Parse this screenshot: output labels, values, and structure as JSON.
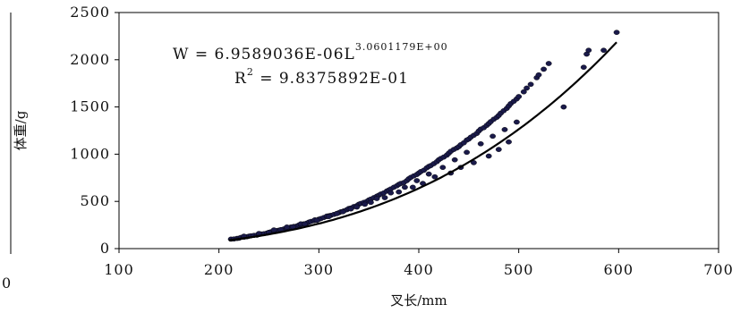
{
  "chart_data": {
    "type": "scatter",
    "xlabel": "叉长/mm",
    "ylabel": "体重/g",
    "xlim": [
      100,
      700
    ],
    "ylim": [
      0,
      2500
    ],
    "x_ticks": [
      "100",
      "200",
      "300",
      "400",
      "500",
      "600",
      "700"
    ],
    "y_ticks": [
      "0",
      "500",
      "1000",
      "1500",
      "2000",
      "2500"
    ],
    "grid": false,
    "legend": "none",
    "point_color": "#1a1a4a",
    "line_color": "#000000",
    "equation": {
      "w_prefix": "W = 6.9589036E-06L",
      "w_exponent": "3.0601179E+00",
      "r_prefix": "R",
      "r_sup": "2",
      "r_value": " = 9.8375892E-01"
    },
    "edge_label": "0",
    "fit": {
      "a": 6.9589036e-06,
      "b": 3.0601179,
      "x_from": 210,
      "x_to": 598
    },
    "series": [
      {
        "x": [
          212,
          215,
          218,
          220,
          222,
          225,
          228,
          230,
          232,
          235,
          238,
          240,
          242,
          245,
          248,
          250,
          252,
          255,
          258,
          260,
          262,
          265,
          268,
          270,
          272,
          275,
          278,
          280,
          282,
          285,
          288,
          290,
          292,
          295,
          298,
          300,
          302,
          305,
          308,
          310,
          312,
          315,
          318,
          320,
          322,
          325,
          328,
          330,
          332,
          335,
          338,
          340,
          342,
          345,
          348,
          350,
          352,
          355,
          358,
          360,
          362,
          365,
          368,
          370,
          372,
          375,
          378,
          380,
          382,
          385,
          388,
          390,
          392,
          395,
          398,
          400,
          402,
          405,
          408,
          410,
          412,
          415,
          418,
          420,
          422,
          425,
          428,
          430,
          432,
          435,
          438,
          440,
          442,
          445,
          448,
          450,
          452,
          455,
          458,
          460,
          462,
          465,
          468,
          470,
          472,
          475,
          478,
          480,
          482,
          485,
          488,
          490,
          492,
          495,
          498,
          500,
          505,
          508,
          512,
          518,
          520,
          525,
          530,
          545,
          565,
          568,
          570,
          585,
          598,
          225,
          240,
          255,
          268,
          282,
          296,
          308,
          318,
          332,
          346,
          358,
          372,
          386,
          398,
          410,
          424,
          436,
          448,
          462,
          474,
          486,
          498,
          490,
          480,
          470,
          455,
          442,
          432,
          416,
          404,
          394,
          380,
          366,
          352,
          338,
          324,
          310,
          298,
          286,
          274,
          262,
          250
        ],
        "y": [
          100,
          102,
          108,
          110,
          118,
          120,
          125,
          132,
          135,
          140,
          142,
          150,
          155,
          158,
          165,
          172,
          178,
          180,
          190,
          195,
          200,
          208,
          215,
          222,
          228,
          235,
          240,
          250,
          255,
          262,
          270,
          280,
          288,
          295,
          300,
          312,
          318,
          330,
          340,
          348,
          352,
          362,
          372,
          380,
          390,
          400,
          412,
          425,
          430,
          445,
          455,
          470,
          478,
          490,
          500,
          515,
          525,
          540,
          555,
          565,
          578,
          590,
          610,
          620,
          632,
          650,
          665,
          680,
          690,
          700,
          720,
          740,
          755,
          770,
          785,
          800,
          815,
          830,
          855,
          870,
          880,
          900,
          920,
          940,
          955,
          970,
          990,
          1010,
          1030,
          1050,
          1065,
          1080,
          1100,
          1120,
          1150,
          1160,
          1180,
          1200,
          1220,
          1245,
          1265,
          1280,
          1305,
          1325,
          1345,
          1370,
          1390,
          1410,
          1435,
          1460,
          1485,
          1510,
          1535,
          1560,
          1585,
          1610,
          1660,
          1700,
          1740,
          1810,
          1840,
          1900,
          1960,
          1500,
          1920,
          2060,
          2100,
          2100,
          2290,
          132,
          160,
          198,
          228,
          262,
          305,
          345,
          370,
          420,
          470,
          530,
          590,
          650,
          720,
          790,
          860,
          940,
          1020,
          1110,
          1190,
          1260,
          1340,
          1130,
          1050,
          980,
          910,
          860,
          800,
          760,
          690,
          650,
          600,
          540,
          490,
          440,
          390,
          340,
          300,
          260,
          230,
          200,
          170
        ]
      }
    ]
  }
}
